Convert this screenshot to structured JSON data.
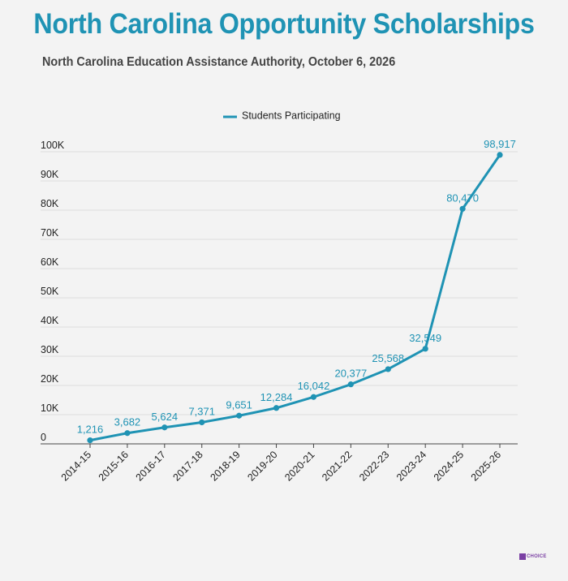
{
  "title": "North Carolina Opportunity Scholarships",
  "subtitle": "North Carolina Education Assistance Authority, October 6, 2026",
  "logo_text": "CHOICE",
  "colors": {
    "accent": "#1f93b4",
    "title": "#1f93b4",
    "grid": "#dcdcdc",
    "text": "#222222",
    "logo": "#7a3fa3"
  },
  "chart_data": {
    "type": "line",
    "title": "North Carolina Opportunity Scholarships",
    "subtitle": "North Carolina Education Assistance Authority, October 6, 2026",
    "xlabel": "",
    "ylabel": "",
    "categories": [
      "2014-15",
      "2015-16",
      "2016-17",
      "2017-18",
      "2018-19",
      "2019-20",
      "2020-21",
      "2021-22",
      "2022-23",
      "2023-24",
      "2024-25",
      "2025-26"
    ],
    "series": [
      {
        "name": "Students Participating",
        "values": [
          1216,
          3682,
          5624,
          7371,
          9651,
          12284,
          16042,
          20377,
          25568,
          32549,
          80470,
          98917
        ],
        "labels": [
          "1,216",
          "3,682",
          "5,624",
          "7,371",
          "9,651",
          "12,284",
          "16,042",
          "20,377",
          "25,568",
          "32,549",
          "80,470",
          "98,917"
        ]
      }
    ],
    "ylim": [
      0,
      100000
    ],
    "yticks": [
      0,
      10000,
      20000,
      30000,
      40000,
      50000,
      60000,
      70000,
      80000,
      90000,
      100000
    ],
    "ytick_labels": [
      "0",
      "10K",
      "20K",
      "30K",
      "40K",
      "50K",
      "60K",
      "70K",
      "80K",
      "90K",
      "100K"
    ],
    "grid": true,
    "legend_position": "top-center"
  }
}
